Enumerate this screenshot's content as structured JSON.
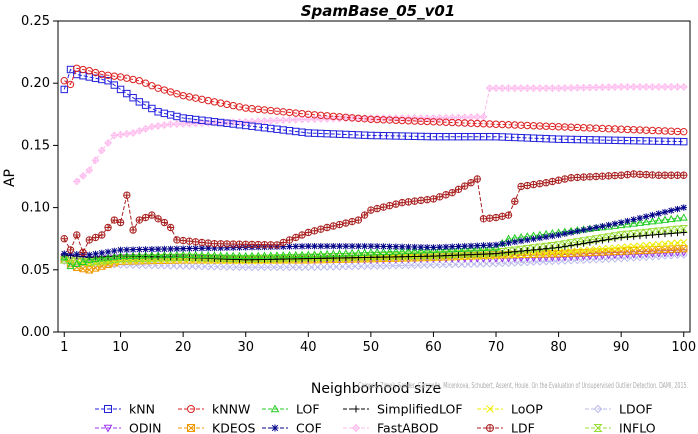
{
  "chart_data": {
    "type": "line",
    "title": "SpamBase_05_v01",
    "xlabel": "Neighborhood size",
    "ylabel": "AP",
    "xlim": [
      0,
      101
    ],
    "ylim": [
      0,
      0.25
    ],
    "xticks": [
      1,
      10,
      20,
      30,
      40,
      50,
      60,
      70,
      80,
      90,
      100
    ],
    "yticks": [
      0.0,
      0.05,
      0.1,
      0.15,
      0.2,
      0.25
    ],
    "ytick_labels": [
      "0.00",
      "0.05",
      "0.10",
      "0.15",
      "0.20",
      "0.25"
    ],
    "grid": false,
    "legend_position": "bottom",
    "watermark": "Campos, Zimek, Sander, Campello, Micenkova, Schubert, Assent, Houle. On the Evaluation of Unsupervised Outlier Detection. DAMI, 2015.",
    "series": [
      {
        "name": "kNN",
        "color": "#2222dd",
        "marker": "square",
        "points": [
          [
            1,
            0.195
          ],
          [
            2,
            0.211
          ],
          [
            3,
            0.207
          ],
          [
            5,
            0.205
          ],
          [
            8,
            0.202
          ],
          [
            10,
            0.195
          ],
          [
            13,
            0.185
          ],
          [
            16,
            0.177
          ],
          [
            20,
            0.172
          ],
          [
            25,
            0.169
          ],
          [
            30,
            0.166
          ],
          [
            40,
            0.16
          ],
          [
            50,
            0.158
          ],
          [
            60,
            0.157
          ],
          [
            70,
            0.157
          ],
          [
            80,
            0.155
          ],
          [
            90,
            0.154
          ],
          [
            100,
            0.153
          ]
        ]
      },
      {
        "name": "kNNW",
        "color": "#dd2222",
        "marker": "circle",
        "points": [
          [
            1,
            0.202
          ],
          [
            2,
            0.199
          ],
          [
            3,
            0.212
          ],
          [
            5,
            0.21
          ],
          [
            7,
            0.207
          ],
          [
            10,
            0.205
          ],
          [
            13,
            0.202
          ],
          [
            16,
            0.196
          ],
          [
            20,
            0.19
          ],
          [
            25,
            0.185
          ],
          [
            30,
            0.18
          ],
          [
            40,
            0.175
          ],
          [
            50,
            0.171
          ],
          [
            60,
            0.169
          ],
          [
            70,
            0.167
          ],
          [
            80,
            0.165
          ],
          [
            90,
            0.163
          ],
          [
            100,
            0.161
          ]
        ]
      },
      {
        "name": "LOF",
        "color": "#22cc22",
        "marker": "triangle-up",
        "points": [
          [
            1,
            0.06
          ],
          [
            2,
            0.053
          ],
          [
            5,
            0.058
          ],
          [
            10,
            0.061
          ],
          [
            20,
            0.062
          ],
          [
            30,
            0.061
          ],
          [
            40,
            0.062
          ],
          [
            50,
            0.064
          ],
          [
            60,
            0.066
          ],
          [
            70,
            0.068
          ],
          [
            72,
            0.075
          ],
          [
            80,
            0.08
          ],
          [
            90,
            0.086
          ],
          [
            100,
            0.092
          ]
        ]
      },
      {
        "name": "SimplifiedLOF",
        "color": "#000000",
        "marker": "plus",
        "points": [
          [
            1,
            0.062
          ],
          [
            5,
            0.06
          ],
          [
            10,
            0.061
          ],
          [
            20,
            0.06
          ],
          [
            30,
            0.058
          ],
          [
            40,
            0.059
          ],
          [
            50,
            0.06
          ],
          [
            60,
            0.061
          ],
          [
            70,
            0.063
          ],
          [
            80,
            0.068
          ],
          [
            90,
            0.076
          ],
          [
            100,
            0.08
          ]
        ]
      },
      {
        "name": "LoOP",
        "color": "#eeee00",
        "marker": "x",
        "points": [
          [
            1,
            0.058
          ],
          [
            5,
            0.055
          ],
          [
            10,
            0.057
          ],
          [
            20,
            0.058
          ],
          [
            30,
            0.057
          ],
          [
            40,
            0.058
          ],
          [
            50,
            0.059
          ],
          [
            60,
            0.06
          ],
          [
            70,
            0.061
          ],
          [
            80,
            0.064
          ],
          [
            90,
            0.068
          ],
          [
            100,
            0.072
          ]
        ]
      },
      {
        "name": "LDOF",
        "color": "#bbbbee",
        "marker": "diamond",
        "points": [
          [
            1,
            0.057
          ],
          [
            5,
            0.055
          ],
          [
            10,
            0.054
          ],
          [
            20,
            0.053
          ],
          [
            30,
            0.052
          ],
          [
            40,
            0.052
          ],
          [
            50,
            0.053
          ],
          [
            60,
            0.054
          ],
          [
            70,
            0.055
          ],
          [
            80,
            0.057
          ],
          [
            90,
            0.059
          ],
          [
            100,
            0.062
          ]
        ]
      },
      {
        "name": "ODIN",
        "color": "#9933ee",
        "marker": "triangle-down",
        "points": [
          [
            1,
            0.06
          ],
          [
            5,
            0.058
          ],
          [
            10,
            0.06
          ],
          [
            20,
            0.06
          ],
          [
            30,
            0.059
          ],
          [
            40,
            0.058
          ],
          [
            50,
            0.058
          ],
          [
            60,
            0.059
          ],
          [
            70,
            0.059
          ],
          [
            80,
            0.06
          ],
          [
            90,
            0.062
          ],
          [
            100,
            0.064
          ]
        ]
      },
      {
        "name": "KDEOS",
        "color": "#ee9900",
        "marker": "square-x",
        "points": [
          [
            1,
            0.058
          ],
          [
            3,
            0.052
          ],
          [
            5,
            0.05
          ],
          [
            7,
            0.053
          ],
          [
            10,
            0.057
          ],
          [
            20,
            0.058
          ],
          [
            30,
            0.058
          ],
          [
            40,
            0.058
          ],
          [
            50,
            0.059
          ],
          [
            60,
            0.06
          ],
          [
            70,
            0.062
          ],
          [
            80,
            0.063
          ],
          [
            90,
            0.065
          ],
          [
            100,
            0.067
          ]
        ]
      },
      {
        "name": "COF",
        "color": "#000088",
        "marker": "asterisk",
        "points": [
          [
            1,
            0.063
          ],
          [
            5,
            0.062
          ],
          [
            10,
            0.066
          ],
          [
            20,
            0.067
          ],
          [
            30,
            0.068
          ],
          [
            40,
            0.069
          ],
          [
            50,
            0.069
          ],
          [
            60,
            0.068
          ],
          [
            70,
            0.07
          ],
          [
            80,
            0.078
          ],
          [
            90,
            0.088
          ],
          [
            100,
            0.1
          ]
        ]
      },
      {
        "name": "FastABOD",
        "color": "#ffbbee",
        "marker": "diamond-plus",
        "points": [
          [
            3,
            0.121
          ],
          [
            5,
            0.13
          ],
          [
            7,
            0.146
          ],
          [
            9,
            0.158
          ],
          [
            12,
            0.16
          ],
          [
            15,
            0.165
          ],
          [
            18,
            0.167
          ],
          [
            30,
            0.169
          ],
          [
            40,
            0.171
          ],
          [
            50,
            0.172
          ],
          [
            60,
            0.172
          ],
          [
            68,
            0.173
          ],
          [
            69,
            0.196
          ],
          [
            80,
            0.196
          ],
          [
            90,
            0.197
          ],
          [
            100,
            0.197
          ]
        ]
      },
      {
        "name": "LDF",
        "color": "#aa2222",
        "marker": "circle-plus",
        "points": [
          [
            1,
            0.075
          ],
          [
            2,
            0.066
          ],
          [
            3,
            0.078
          ],
          [
            4,
            0.064
          ],
          [
            5,
            0.074
          ],
          [
            7,
            0.078
          ],
          [
            9,
            0.09
          ],
          [
            10,
            0.088
          ],
          [
            11,
            0.11
          ],
          [
            12,
            0.082
          ],
          [
            13,
            0.09
          ],
          [
            15,
            0.094
          ],
          [
            17,
            0.088
          ],
          [
            18,
            0.084
          ],
          [
            19,
            0.074
          ],
          [
            25,
            0.071
          ],
          [
            35,
            0.07
          ],
          [
            40,
            0.08
          ],
          [
            43,
            0.084
          ],
          [
            48,
            0.09
          ],
          [
            50,
            0.098
          ],
          [
            55,
            0.104
          ],
          [
            60,
            0.107
          ],
          [
            63,
            0.112
          ],
          [
            66,
            0.12
          ],
          [
            67,
            0.123
          ],
          [
            68,
            0.091
          ],
          [
            70,
            0.092
          ],
          [
            72,
            0.094
          ],
          [
            73,
            0.105
          ],
          [
            74,
            0.117
          ],
          [
            78,
            0.12
          ],
          [
            82,
            0.124
          ],
          [
            86,
            0.125
          ],
          [
            90,
            0.126
          ],
          [
            92,
            0.127
          ],
          [
            96,
            0.126
          ],
          [
            100,
            0.126
          ]
        ]
      },
      {
        "name": "INFLO",
        "color": "#99dd33",
        "marker": "hourglass",
        "points": [
          [
            1,
            0.058
          ],
          [
            5,
            0.056
          ],
          [
            10,
            0.059
          ],
          [
            20,
            0.06
          ],
          [
            30,
            0.059
          ],
          [
            40,
            0.06
          ],
          [
            50,
            0.061
          ],
          [
            60,
            0.062
          ],
          [
            70,
            0.064
          ],
          [
            80,
            0.07
          ],
          [
            90,
            0.078
          ],
          [
            100,
            0.083
          ]
        ]
      }
    ]
  }
}
